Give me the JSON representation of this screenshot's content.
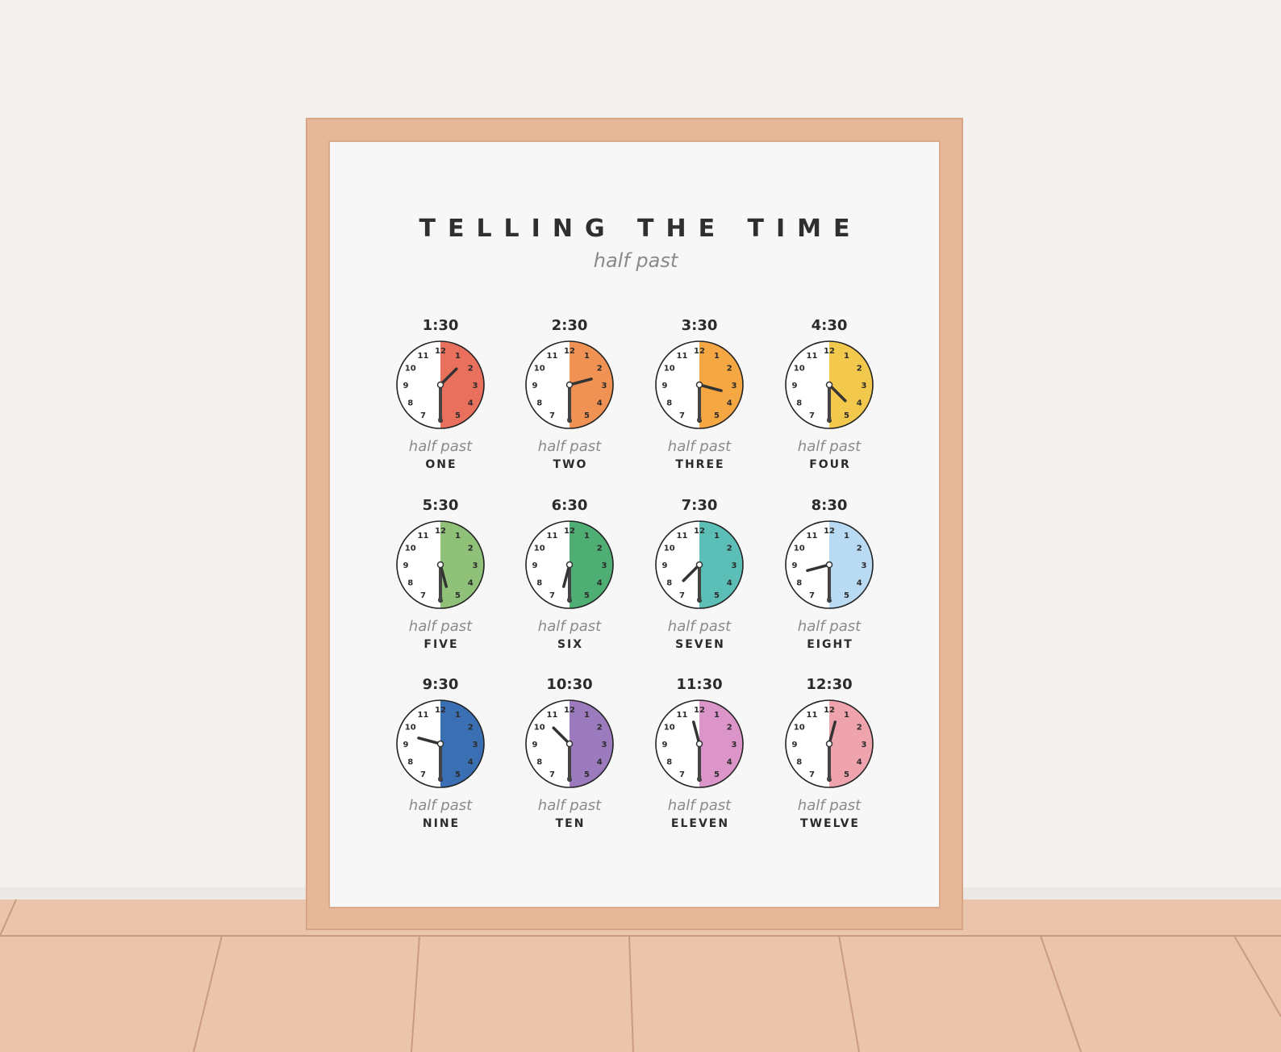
{
  "title": "TELLING THE TIME",
  "subtitle": "half past",
  "dial": [
    "1",
    "2",
    "3",
    "4",
    "5",
    "6",
    "7",
    "8",
    "9",
    "10",
    "11",
    "12"
  ],
  "clocks": [
    {
      "time": "1:30",
      "caption": "half past",
      "word": "ONE",
      "color": "#e9705d"
    },
    {
      "time": "2:30",
      "caption": "half past",
      "word": "TWO",
      "color": "#ef9254"
    },
    {
      "time": "3:30",
      "caption": "half past",
      "word": "THREE",
      "color": "#f4a743"
    },
    {
      "time": "4:30",
      "caption": "half past",
      "word": "FOUR",
      "color": "#f2c94c"
    },
    {
      "time": "5:30",
      "caption": "half past",
      "word": "FIVE",
      "color": "#8fc178"
    },
    {
      "time": "6:30",
      "caption": "half past",
      "word": "SIX",
      "color": "#4fae73"
    },
    {
      "time": "7:30",
      "caption": "half past",
      "word": "SEVEN",
      "color": "#5bbfb8"
    },
    {
      "time": "8:30",
      "caption": "half past",
      "word": "EIGHT",
      "color": "#b9daf3"
    },
    {
      "time": "9:30",
      "caption": "half past",
      "word": "NINE",
      "color": "#3b6fb3"
    },
    {
      "time": "10:30",
      "caption": "half past",
      "word": "TEN",
      "color": "#9b7bbd"
    },
    {
      "time": "11:30",
      "caption": "half past",
      "word": "ELEVEN",
      "color": "#db95c8"
    },
    {
      "time": "12:30",
      "caption": "half past",
      "word": "TWELVE",
      "color": "#efa3ad"
    }
  ]
}
